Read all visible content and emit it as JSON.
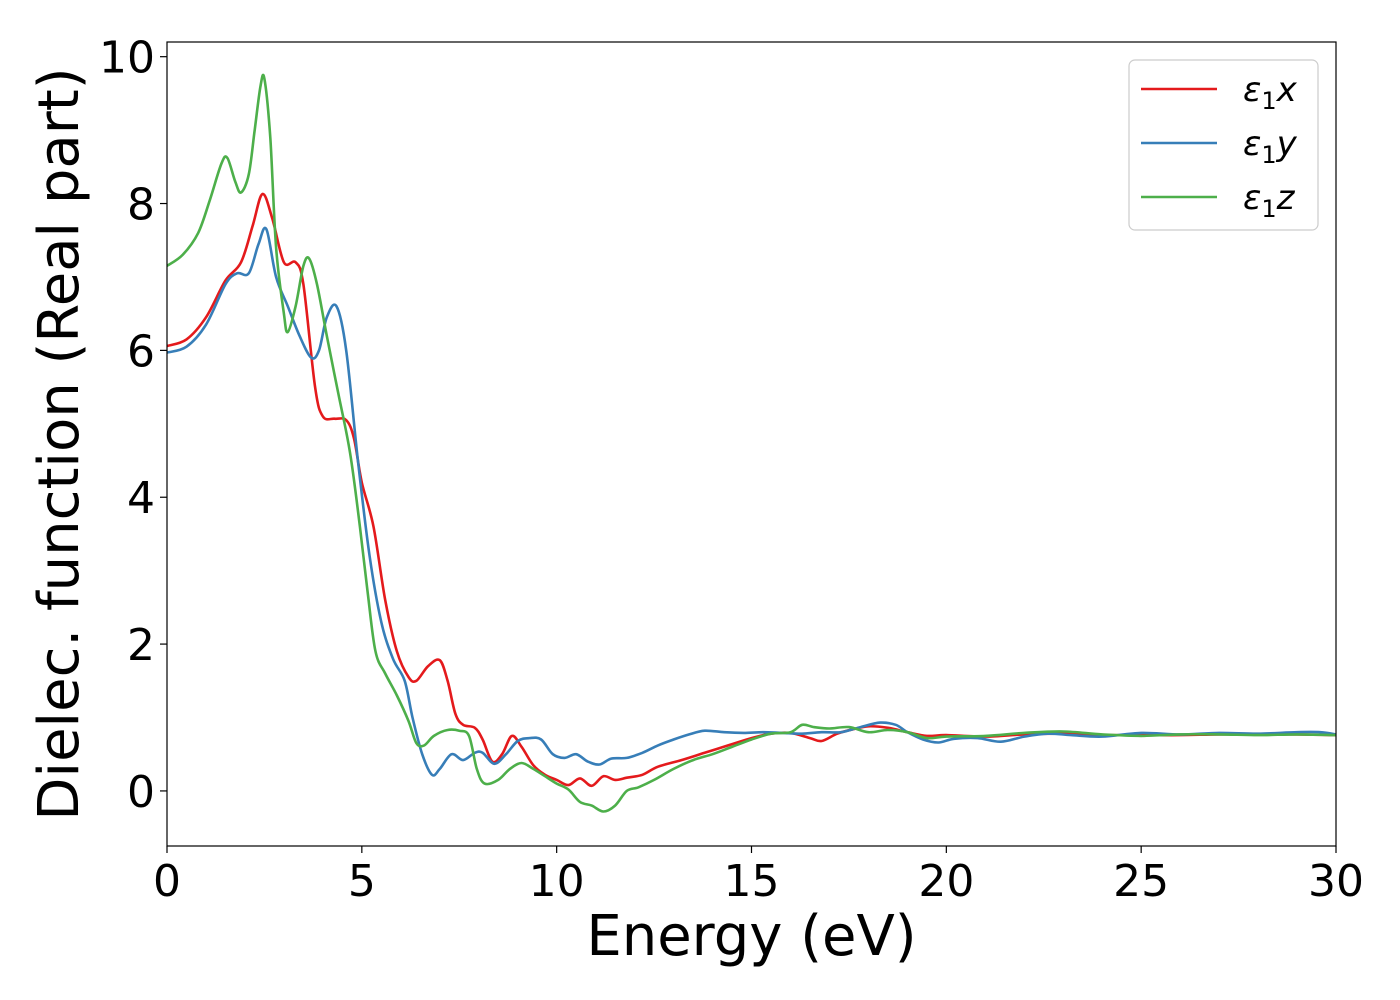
{
  "chart_data": {
    "type": "line",
    "xlabel": "Energy (eV)",
    "ylabel": "Dielec. function (Real part)",
    "xlim": [
      0,
      30
    ],
    "ylim": [
      -0.75,
      10.2
    ],
    "xticks": [
      0,
      5,
      10,
      15,
      20,
      25,
      30
    ],
    "yticks": [
      0,
      2,
      4,
      6,
      8,
      10
    ],
    "grid": false,
    "legend_position": "top-right",
    "series": [
      {
        "name": "ε₁x",
        "label_main": "ε",
        "label_sub": "1",
        "label_var": "x",
        "color": "#e41a1c",
        "points": [
          [
            0,
            6.06
          ],
          [
            0.5,
            6.15
          ],
          [
            1.0,
            6.45
          ],
          [
            1.5,
            6.95
          ],
          [
            1.9,
            7.2
          ],
          [
            2.2,
            7.7
          ],
          [
            2.45,
            8.13
          ],
          [
            2.7,
            7.8
          ],
          [
            3.0,
            7.2
          ],
          [
            3.3,
            7.2
          ],
          [
            3.5,
            6.9
          ],
          [
            3.8,
            5.5
          ],
          [
            4.0,
            5.1
          ],
          [
            4.3,
            5.07
          ],
          [
            4.6,
            5.05
          ],
          [
            4.8,
            4.8
          ],
          [
            5.0,
            4.2
          ],
          [
            5.3,
            3.6
          ],
          [
            5.6,
            2.6
          ],
          [
            5.9,
            1.9
          ],
          [
            6.2,
            1.55
          ],
          [
            6.4,
            1.5
          ],
          [
            6.7,
            1.7
          ],
          [
            7.0,
            1.78
          ],
          [
            7.2,
            1.5
          ],
          [
            7.4,
            1.05
          ],
          [
            7.6,
            0.9
          ],
          [
            7.9,
            0.86
          ],
          [
            8.1,
            0.7
          ],
          [
            8.35,
            0.4
          ],
          [
            8.6,
            0.5
          ],
          [
            8.85,
            0.75
          ],
          [
            9.1,
            0.6
          ],
          [
            9.4,
            0.35
          ],
          [
            9.7,
            0.22
          ],
          [
            10.0,
            0.15
          ],
          [
            10.3,
            0.08
          ],
          [
            10.6,
            0.17
          ],
          [
            10.9,
            0.07
          ],
          [
            11.2,
            0.2
          ],
          [
            11.5,
            0.15
          ],
          [
            11.8,
            0.18
          ],
          [
            12.2,
            0.22
          ],
          [
            12.6,
            0.33
          ],
          [
            13.2,
            0.42
          ],
          [
            13.8,
            0.52
          ],
          [
            14.4,
            0.62
          ],
          [
            15.0,
            0.72
          ],
          [
            15.5,
            0.78
          ],
          [
            16.0,
            0.79
          ],
          [
            16.5,
            0.72
          ],
          [
            16.8,
            0.68
          ],
          [
            17.2,
            0.78
          ],
          [
            17.6,
            0.84
          ],
          [
            18.0,
            0.88
          ],
          [
            18.5,
            0.86
          ],
          [
            19.0,
            0.8
          ],
          [
            19.5,
            0.75
          ],
          [
            20.0,
            0.76
          ],
          [
            21.0,
            0.74
          ],
          [
            22.0,
            0.77
          ],
          [
            23.0,
            0.78
          ],
          [
            24.0,
            0.76
          ],
          [
            25.0,
            0.76
          ],
          [
            26.0,
            0.76
          ],
          [
            27.0,
            0.77
          ],
          [
            28.0,
            0.77
          ],
          [
            29.0,
            0.77
          ],
          [
            30.0,
            0.76
          ]
        ]
      },
      {
        "name": "ε₁y",
        "label_main": "ε",
        "label_sub": "1",
        "label_var": "y",
        "color": "#377eb8",
        "points": [
          [
            0,
            5.97
          ],
          [
            0.5,
            6.05
          ],
          [
            1.0,
            6.35
          ],
          [
            1.5,
            6.9
          ],
          [
            1.8,
            7.05
          ],
          [
            2.1,
            7.05
          ],
          [
            2.35,
            7.45
          ],
          [
            2.55,
            7.65
          ],
          [
            2.8,
            7.0
          ],
          [
            3.1,
            6.6
          ],
          [
            3.4,
            6.2
          ],
          [
            3.7,
            5.9
          ],
          [
            3.9,
            6.0
          ],
          [
            4.1,
            6.45
          ],
          [
            4.35,
            6.6
          ],
          [
            4.6,
            6.0
          ],
          [
            4.9,
            4.5
          ],
          [
            5.2,
            3.2
          ],
          [
            5.5,
            2.3
          ],
          [
            5.8,
            1.8
          ],
          [
            6.1,
            1.5
          ],
          [
            6.3,
            1.0
          ],
          [
            6.55,
            0.5
          ],
          [
            6.8,
            0.22
          ],
          [
            7.0,
            0.3
          ],
          [
            7.3,
            0.5
          ],
          [
            7.6,
            0.42
          ],
          [
            7.9,
            0.52
          ],
          [
            8.1,
            0.52
          ],
          [
            8.4,
            0.37
          ],
          [
            8.7,
            0.5
          ],
          [
            9.0,
            0.68
          ],
          [
            9.3,
            0.72
          ],
          [
            9.6,
            0.7
          ],
          [
            9.9,
            0.5
          ],
          [
            10.2,
            0.45
          ],
          [
            10.5,
            0.5
          ],
          [
            10.8,
            0.4
          ],
          [
            11.1,
            0.36
          ],
          [
            11.4,
            0.44
          ],
          [
            11.8,
            0.45
          ],
          [
            12.2,
            0.52
          ],
          [
            12.6,
            0.62
          ],
          [
            13.0,
            0.7
          ],
          [
            13.4,
            0.77
          ],
          [
            13.8,
            0.82
          ],
          [
            14.3,
            0.8
          ],
          [
            14.8,
            0.79
          ],
          [
            15.3,
            0.8
          ],
          [
            15.8,
            0.79
          ],
          [
            16.3,
            0.78
          ],
          [
            16.8,
            0.8
          ],
          [
            17.3,
            0.8
          ],
          [
            17.8,
            0.87
          ],
          [
            18.3,
            0.93
          ],
          [
            18.7,
            0.9
          ],
          [
            19.0,
            0.8
          ],
          [
            19.4,
            0.7
          ],
          [
            19.8,
            0.66
          ],
          [
            20.2,
            0.71
          ],
          [
            20.8,
            0.72
          ],
          [
            21.4,
            0.67
          ],
          [
            22.0,
            0.74
          ],
          [
            22.6,
            0.78
          ],
          [
            23.2,
            0.76
          ],
          [
            24.0,
            0.74
          ],
          [
            25.0,
            0.79
          ],
          [
            26.0,
            0.77
          ],
          [
            27.0,
            0.79
          ],
          [
            28.0,
            0.78
          ],
          [
            29.0,
            0.8
          ],
          [
            29.6,
            0.8
          ],
          [
            30.0,
            0.77
          ]
        ]
      },
      {
        "name": "ε₁z",
        "label_main": "ε",
        "label_sub": "1",
        "label_var": "z",
        "color": "#4daf4a",
        "points": [
          [
            0,
            7.15
          ],
          [
            0.4,
            7.3
          ],
          [
            0.8,
            7.6
          ],
          [
            1.1,
            8.05
          ],
          [
            1.4,
            8.55
          ],
          [
            1.55,
            8.62
          ],
          [
            1.75,
            8.3
          ],
          [
            1.9,
            8.15
          ],
          [
            2.1,
            8.4
          ],
          [
            2.25,
            9.0
          ],
          [
            2.4,
            9.6
          ],
          [
            2.5,
            9.7
          ],
          [
            2.65,
            8.9
          ],
          [
            2.8,
            7.4
          ],
          [
            3.0,
            6.5
          ],
          [
            3.1,
            6.25
          ],
          [
            3.3,
            6.6
          ],
          [
            3.5,
            7.15
          ],
          [
            3.65,
            7.25
          ],
          [
            3.85,
            6.9
          ],
          [
            4.1,
            6.2
          ],
          [
            4.4,
            5.4
          ],
          [
            4.7,
            4.6
          ],
          [
            4.95,
            3.6
          ],
          [
            5.15,
            2.7
          ],
          [
            5.35,
            1.9
          ],
          [
            5.6,
            1.6
          ],
          [
            5.9,
            1.3
          ],
          [
            6.2,
            0.95
          ],
          [
            6.4,
            0.65
          ],
          [
            6.6,
            0.62
          ],
          [
            6.85,
            0.75
          ],
          [
            7.2,
            0.83
          ],
          [
            7.5,
            0.82
          ],
          [
            7.75,
            0.75
          ],
          [
            7.95,
            0.3
          ],
          [
            8.15,
            0.1
          ],
          [
            8.5,
            0.15
          ],
          [
            8.8,
            0.3
          ],
          [
            9.1,
            0.38
          ],
          [
            9.4,
            0.3
          ],
          [
            9.7,
            0.2
          ],
          [
            10.0,
            0.1
          ],
          [
            10.3,
            0.02
          ],
          [
            10.6,
            -0.15
          ],
          [
            10.9,
            -0.2
          ],
          [
            11.2,
            -0.28
          ],
          [
            11.5,
            -0.2
          ],
          [
            11.8,
            0.0
          ],
          [
            12.1,
            0.05
          ],
          [
            12.5,
            0.15
          ],
          [
            13.0,
            0.3
          ],
          [
            13.5,
            0.42
          ],
          [
            14.0,
            0.5
          ],
          [
            14.5,
            0.6
          ],
          [
            15.0,
            0.7
          ],
          [
            15.5,
            0.78
          ],
          [
            16.0,
            0.8
          ],
          [
            16.3,
            0.9
          ],
          [
            16.6,
            0.87
          ],
          [
            17.0,
            0.85
          ],
          [
            17.5,
            0.87
          ],
          [
            18.0,
            0.8
          ],
          [
            18.5,
            0.83
          ],
          [
            19.0,
            0.8
          ],
          [
            19.5,
            0.72
          ],
          [
            20.0,
            0.74
          ],
          [
            21.0,
            0.75
          ],
          [
            22.0,
            0.79
          ],
          [
            23.0,
            0.81
          ],
          [
            24.0,
            0.77
          ],
          [
            25.0,
            0.75
          ],
          [
            26.0,
            0.77
          ],
          [
            27.0,
            0.77
          ],
          [
            28.0,
            0.76
          ],
          [
            29.0,
            0.77
          ],
          [
            30.0,
            0.76
          ]
        ]
      }
    ]
  }
}
